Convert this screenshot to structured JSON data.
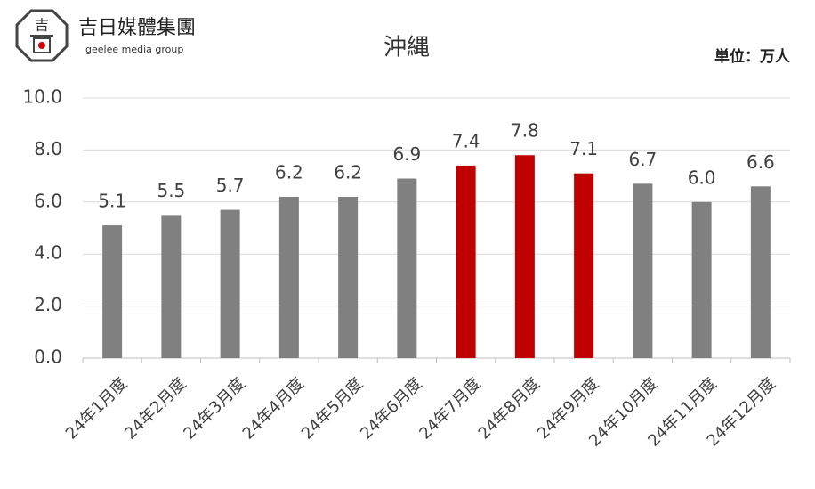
{
  "chart_data": {
    "type": "bar",
    "title": "沖縄",
    "brand": "吉日媒體集團",
    "brand_subtitle": "geelee media group",
    "unit": "単位：万人",
    "categories": [
      "24年1月度",
      "24年2月度",
      "24年3月度",
      "24年4月度",
      "24年5月度",
      "24年6月度",
      "24年7月度",
      "24年8月度",
      "24年9月度",
      "24年10月度",
      "24年11月度",
      "24年12月度"
    ],
    "values": [
      5.1,
      5.5,
      5.7,
      6.2,
      6.2,
      6.9,
      7.4,
      7.8,
      7.1,
      6.7,
      6.0,
      6.6
    ],
    "value_labels": [
      "5.1",
      "5.5",
      "5.7",
      "6.2",
      "6.2",
      "6.9",
      "7.4",
      "7.8",
      "7.1",
      "6.7",
      "6.0",
      "6.6"
    ],
    "colors": [
      "#808080",
      "#808080",
      "#808080",
      "#808080",
      "#808080",
      "#808080",
      "#c00000",
      "#c00000",
      "#c00000",
      "#808080",
      "#808080",
      "#808080"
    ],
    "ylim": [
      0,
      10
    ],
    "yticks": [
      {
        "value": 0,
        "label": "0.0"
      },
      {
        "value": 2,
        "label": "2.0"
      },
      {
        "value": 4,
        "label": "4.0"
      },
      {
        "value": 6,
        "label": "6.0"
      },
      {
        "value": 8,
        "label": "8.0"
      },
      {
        "value": 10,
        "label": "10.0"
      }
    ],
    "grid": true
  }
}
